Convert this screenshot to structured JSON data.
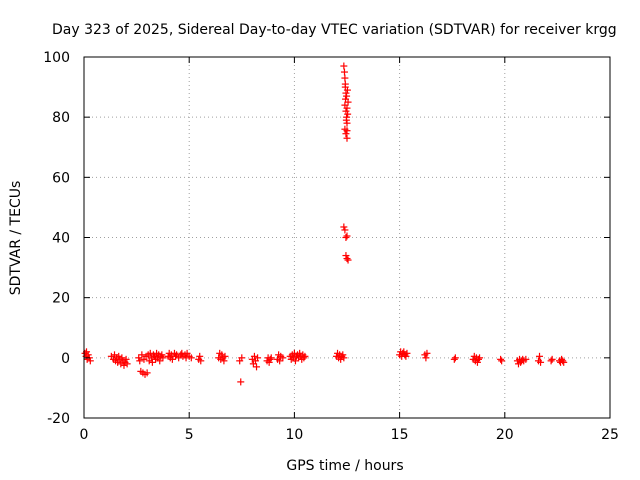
{
  "chart_data": {
    "type": "scatter",
    "title": "Day 323 of 2025, Sidereal Day-to-day VTEC variation (SDTVAR) for receiver krgg",
    "xlabel": "GPS time / hours",
    "ylabel": "SDTVAR / TECUs",
    "xlim": [
      0,
      25
    ],
    "ylim": [
      -20,
      100
    ],
    "xticks": [
      0,
      5,
      10,
      15,
      20,
      25
    ],
    "yticks": [
      -20,
      0,
      20,
      40,
      60,
      80,
      100
    ],
    "xtick_labels": [
      "0",
      "5",
      "10",
      "15",
      "20",
      "25"
    ],
    "ytick_labels": [
      "-20",
      "0",
      "20",
      "40",
      "60",
      "80",
      "100"
    ],
    "grid": true,
    "marker": "+",
    "series": [
      {
        "name": "SDTVAR",
        "color": "#ff0000",
        "points": [
          [
            0.05,
            1.5
          ],
          [
            0.1,
            0.5
          ],
          [
            0.15,
            -0.5
          ],
          [
            0.2,
            1.0
          ],
          [
            0.25,
            0.0
          ],
          [
            0.3,
            -1.0
          ],
          [
            0.12,
            2.0
          ],
          [
            1.3,
            0.5
          ],
          [
            1.4,
            -0.5
          ],
          [
            1.45,
            1.0
          ],
          [
            1.5,
            -1.0
          ],
          [
            1.55,
            0.0
          ],
          [
            1.6,
            -1.5
          ],
          [
            1.65,
            0.5
          ],
          [
            1.7,
            -0.5
          ],
          [
            1.75,
            -2.0
          ],
          [
            1.8,
            0.0
          ],
          [
            1.85,
            -1.0
          ],
          [
            1.9,
            -2.5
          ],
          [
            1.95,
            -1.5
          ],
          [
            2.0,
            -0.5
          ],
          [
            2.05,
            -2.0
          ],
          [
            2.6,
            0.0
          ],
          [
            2.65,
            -1.0
          ],
          [
            2.7,
            -4.5
          ],
          [
            2.75,
            1.0
          ],
          [
            2.8,
            -5.0
          ],
          [
            2.85,
            -0.5
          ],
          [
            2.9,
            -5.5
          ],
          [
            2.95,
            0.5
          ],
          [
            3.0,
            -5.0
          ],
          [
            3.05,
            1.0
          ],
          [
            3.1,
            -1.0
          ],
          [
            3.15,
            1.5
          ],
          [
            3.2,
            0.0
          ],
          [
            3.25,
            -1.5
          ],
          [
            3.3,
            1.0
          ],
          [
            3.35,
            0.5
          ],
          [
            3.4,
            -0.5
          ],
          [
            3.45,
            1.5
          ],
          [
            3.5,
            0.0
          ],
          [
            3.55,
            1.0
          ],
          [
            3.6,
            -1.0
          ],
          [
            3.65,
            0.5
          ],
          [
            3.7,
            1.0
          ],
          [
            3.75,
            0.0
          ],
          [
            4.0,
            0.5
          ],
          [
            4.05,
            1.5
          ],
          [
            4.1,
            0.0
          ],
          [
            4.15,
            1.0
          ],
          [
            4.2,
            -0.5
          ],
          [
            4.3,
            1.5
          ],
          [
            4.35,
            0.5
          ],
          [
            4.4,
            1.0
          ],
          [
            4.5,
            0.0
          ],
          [
            4.6,
            1.0
          ],
          [
            4.65,
            1.5
          ],
          [
            4.7,
            0.5
          ],
          [
            4.8,
            1.0
          ],
          [
            4.85,
            0.0
          ],
          [
            4.9,
            1.5
          ],
          [
            5.0,
            0.5
          ],
          [
            5.1,
            0.0
          ],
          [
            5.45,
            -0.5
          ],
          [
            5.5,
            0.5
          ],
          [
            5.55,
            -1.0
          ],
          [
            6.4,
            0.0
          ],
          [
            6.45,
            1.5
          ],
          [
            6.5,
            -0.5
          ],
          [
            6.55,
            1.0
          ],
          [
            6.6,
            0.0
          ],
          [
            6.65,
            -1.0
          ],
          [
            6.7,
            0.5
          ],
          [
            7.4,
            -1.0
          ],
          [
            7.45,
            -8.0
          ],
          [
            7.5,
            0.0
          ],
          [
            8.0,
            -0.5
          ],
          [
            8.05,
            -2.0
          ],
          [
            8.1,
            0.5
          ],
          [
            8.15,
            -1.0
          ],
          [
            8.2,
            -3.0
          ],
          [
            8.25,
            0.0
          ],
          [
            8.7,
            -1.0
          ],
          [
            8.75,
            0.0
          ],
          [
            8.8,
            -1.5
          ],
          [
            8.85,
            -0.5
          ],
          [
            8.9,
            0.0
          ],
          [
            9.2,
            -0.5
          ],
          [
            9.25,
            1.0
          ],
          [
            9.3,
            -1.0
          ],
          [
            9.35,
            0.5
          ],
          [
            9.45,
            0.0
          ],
          [
            9.8,
            0.5
          ],
          [
            9.85,
            -0.5
          ],
          [
            9.9,
            1.0
          ],
          [
            9.95,
            0.0
          ],
          [
            10.0,
            1.5
          ],
          [
            10.05,
            -1.0
          ],
          [
            10.1,
            0.5
          ],
          [
            10.15,
            1.0
          ],
          [
            10.2,
            0.0
          ],
          [
            10.25,
            1.5
          ],
          [
            10.3,
            0.5
          ],
          [
            10.35,
            -0.5
          ],
          [
            10.4,
            1.0
          ],
          [
            10.45,
            0.0
          ],
          [
            10.5,
            0.5
          ],
          [
            12.0,
            0.5
          ],
          [
            12.05,
            1.5
          ],
          [
            12.1,
            0.0
          ],
          [
            12.15,
            1.0
          ],
          [
            12.2,
            -0.5
          ],
          [
            12.25,
            0.5
          ],
          [
            12.3,
            1.0
          ],
          [
            12.35,
            0.0
          ],
          [
            12.35,
            97.0
          ],
          [
            12.38,
            95.0
          ],
          [
            12.4,
            93.0
          ],
          [
            12.42,
            91.0
          ],
          [
            12.45,
            88.0
          ],
          [
            12.43,
            86.0
          ],
          [
            12.4,
            84.0
          ],
          [
            12.45,
            82.0
          ],
          [
            12.48,
            80.0
          ],
          [
            12.5,
            78.0
          ],
          [
            12.4,
            76.0
          ],
          [
            12.45,
            74.5
          ],
          [
            12.5,
            73.0
          ],
          [
            12.52,
            89.0
          ],
          [
            12.55,
            85.0
          ],
          [
            12.5,
            83.0
          ],
          [
            12.48,
            87.0
          ],
          [
            12.42,
            90.0
          ],
          [
            12.5,
            75.5
          ],
          [
            12.47,
            79.0
          ],
          [
            12.53,
            81.0
          ],
          [
            12.35,
            43.5
          ],
          [
            12.4,
            42.5
          ],
          [
            12.45,
            40.0
          ],
          [
            12.5,
            40.5
          ],
          [
            12.45,
            34.0
          ],
          [
            12.5,
            33.0
          ],
          [
            12.55,
            32.5
          ],
          [
            15.0,
            1.0
          ],
          [
            15.05,
            2.0
          ],
          [
            15.1,
            0.5
          ],
          [
            15.15,
            1.5
          ],
          [
            15.2,
            2.0
          ],
          [
            15.25,
            1.0
          ],
          [
            15.3,
            0.5
          ],
          [
            15.35,
            1.5
          ],
          [
            16.2,
            1.0
          ],
          [
            16.25,
            0.0
          ],
          [
            16.3,
            1.5
          ],
          [
            17.6,
            -0.5
          ],
          [
            17.65,
            0.0
          ],
          [
            18.5,
            -0.5
          ],
          [
            18.55,
            0.5
          ],
          [
            18.6,
            -1.0
          ],
          [
            18.65,
            0.0
          ],
          [
            18.7,
            -1.5
          ],
          [
            18.75,
            -0.5
          ],
          [
            18.8,
            0.0
          ],
          [
            19.8,
            -0.5
          ],
          [
            19.85,
            -1.0
          ],
          [
            20.6,
            -1.0
          ],
          [
            20.65,
            -2.0
          ],
          [
            20.7,
            -0.5
          ],
          [
            20.75,
            -1.5
          ],
          [
            20.8,
            -1.0
          ],
          [
            20.85,
            -0.5
          ],
          [
            20.9,
            -1.0
          ],
          [
            21.0,
            -0.5
          ],
          [
            21.6,
            -1.0
          ],
          [
            21.65,
            0.5
          ],
          [
            21.7,
            -1.5
          ],
          [
            22.2,
            -1.0
          ],
          [
            22.25,
            -0.5
          ],
          [
            22.6,
            -1.0
          ],
          [
            22.65,
            -1.5
          ],
          [
            22.7,
            -0.5
          ],
          [
            22.75,
            -1.0
          ],
          [
            22.8,
            -1.5
          ]
        ]
      }
    ]
  }
}
